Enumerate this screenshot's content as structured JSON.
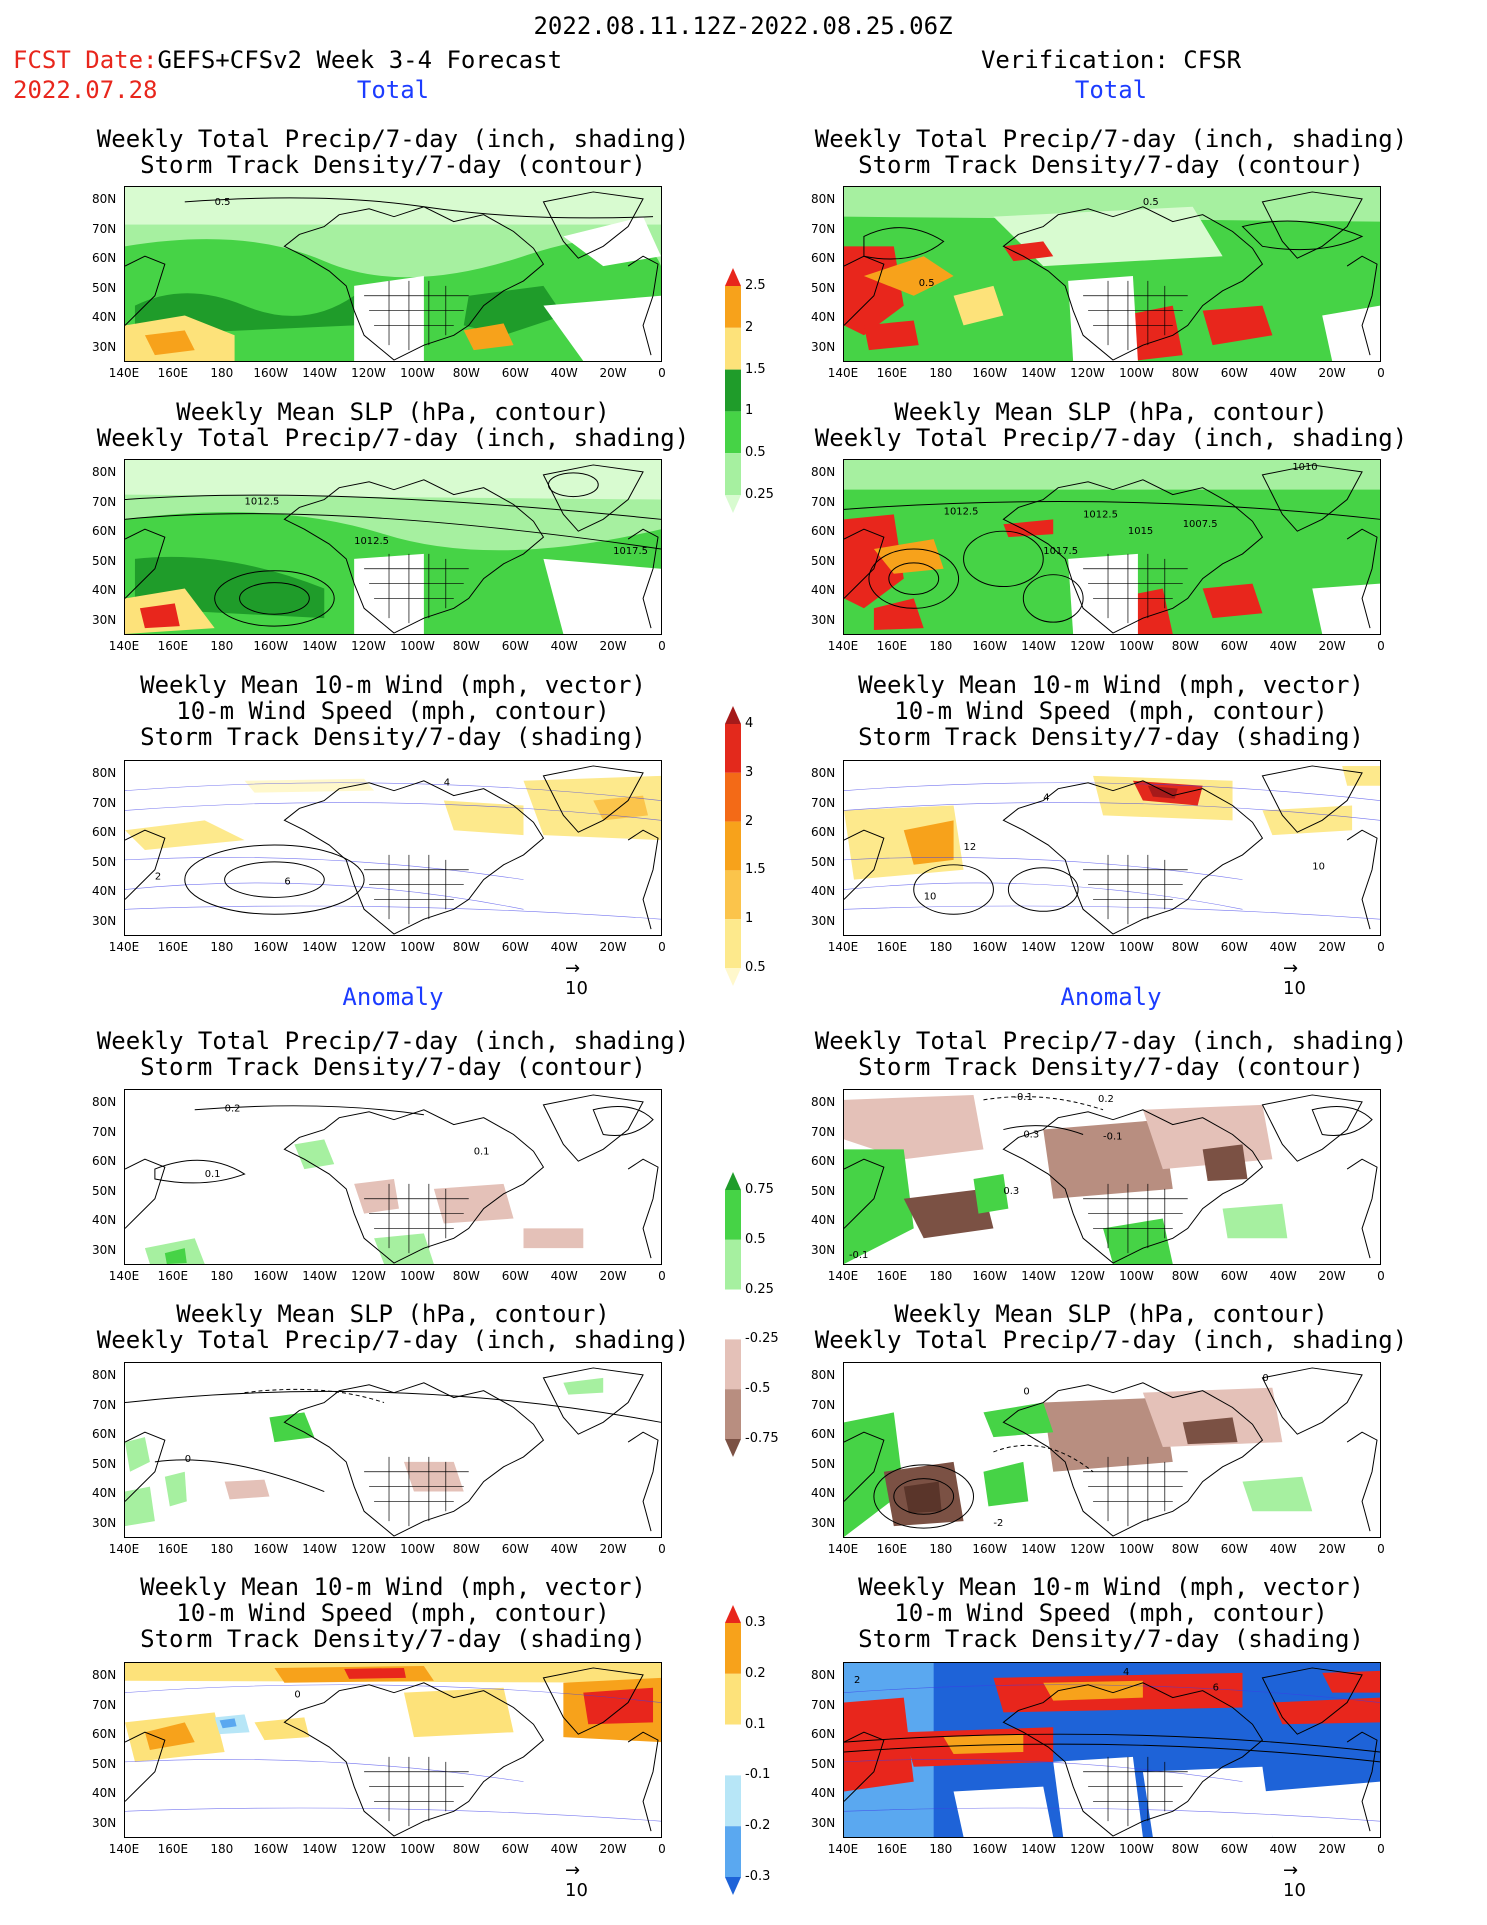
{
  "header": {
    "period": "2022.08.11.12Z-2022.08.25.06Z",
    "fcst_label": "FCST Date:",
    "model": "GEFS+CFSv2 Week 3-4 Forecast",
    "fcst_date": "2022.07.28",
    "verification": "Verification: CFSR"
  },
  "sections": {
    "total": "Total",
    "anomaly": "Anomaly"
  },
  "panel_titles": {
    "precip_storm_1": "Weekly Total Precip/7-day (inch, shading)",
    "precip_storm_2": "Storm Track Density/7-day (contour)",
    "slp_1": "Weekly Mean SLP (hPa, contour)",
    "slp_2": "Weekly Total Precip/7-day (inch, shading)",
    "wind_1": "Weekly Mean 10-m Wind (mph, vector)",
    "wind_2": "10-m Wind Speed (mph, contour)",
    "wind_3": "Storm Track Density/7-day (shading)"
  },
  "axes": {
    "lat_labels": [
      "80N",
      "70N",
      "60N",
      "50N",
      "40N",
      "30N"
    ],
    "lon_labels": [
      "140E",
      "160E",
      "180",
      "160W",
      "140W",
      "120W",
      "100W",
      "80W",
      "60W",
      "40W",
      "20W",
      "0"
    ]
  },
  "vector_reference": "10",
  "colorbars": {
    "total_precip": {
      "labels": [
        "2.5",
        "2",
        "1.5",
        "1",
        "0.5",
        "0.25"
      ],
      "colors": [
        "#e8261c",
        "#f7a21b",
        "#fde27a",
        "#1f9c2a",
        "#46d346",
        "#a6f0a0",
        "#d8fbd0"
      ]
    },
    "total_storm": {
      "labels": [
        "4",
        "3",
        "2",
        "1.5",
        "1",
        "0.5"
      ],
      "colors": [
        "#a51a1a",
        "#e3291c",
        "#f36a17",
        "#f7a21b",
        "#fbc44b",
        "#fde98c",
        "#fff8cc"
      ]
    },
    "anom_precip": {
      "labels": [
        "0.75",
        "0.5",
        "0.25",
        "-0.25",
        "-0.5",
        "-0.75"
      ],
      "colors": [
        "#1f9c2a",
        "#46d346",
        "#a6f0a0",
        "#ffffff",
        "#e4c1b8",
        "#b88e80",
        "#7b5144"
      ]
    },
    "anom_storm": {
      "labels": [
        "0.3",
        "0.2",
        "0.1",
        "-0.1",
        "-0.2",
        "-0.3"
      ],
      "colors": [
        "#e8261c",
        "#f7a21b",
        "#fde27a",
        "#ffffff",
        "#b7e6f7",
        "#5aa8f0",
        "#1e63d8"
      ]
    },
    "contour_labels": {
      "l1": "0.5",
      "l2": "1012.5",
      "l3": "1017.5",
      "l4": "1010",
      "l5": "1007.5",
      "l6": "1015",
      "w1": "2",
      "w2": "4",
      "w3": "6",
      "w4": "10",
      "w5": "12",
      "a1": "0.2",
      "a2": "-0.1",
      "a3": "0.1",
      "a4": "0.3",
      "a5": "-2",
      "a6": "0",
      "a7": "-0.3"
    }
  }
}
